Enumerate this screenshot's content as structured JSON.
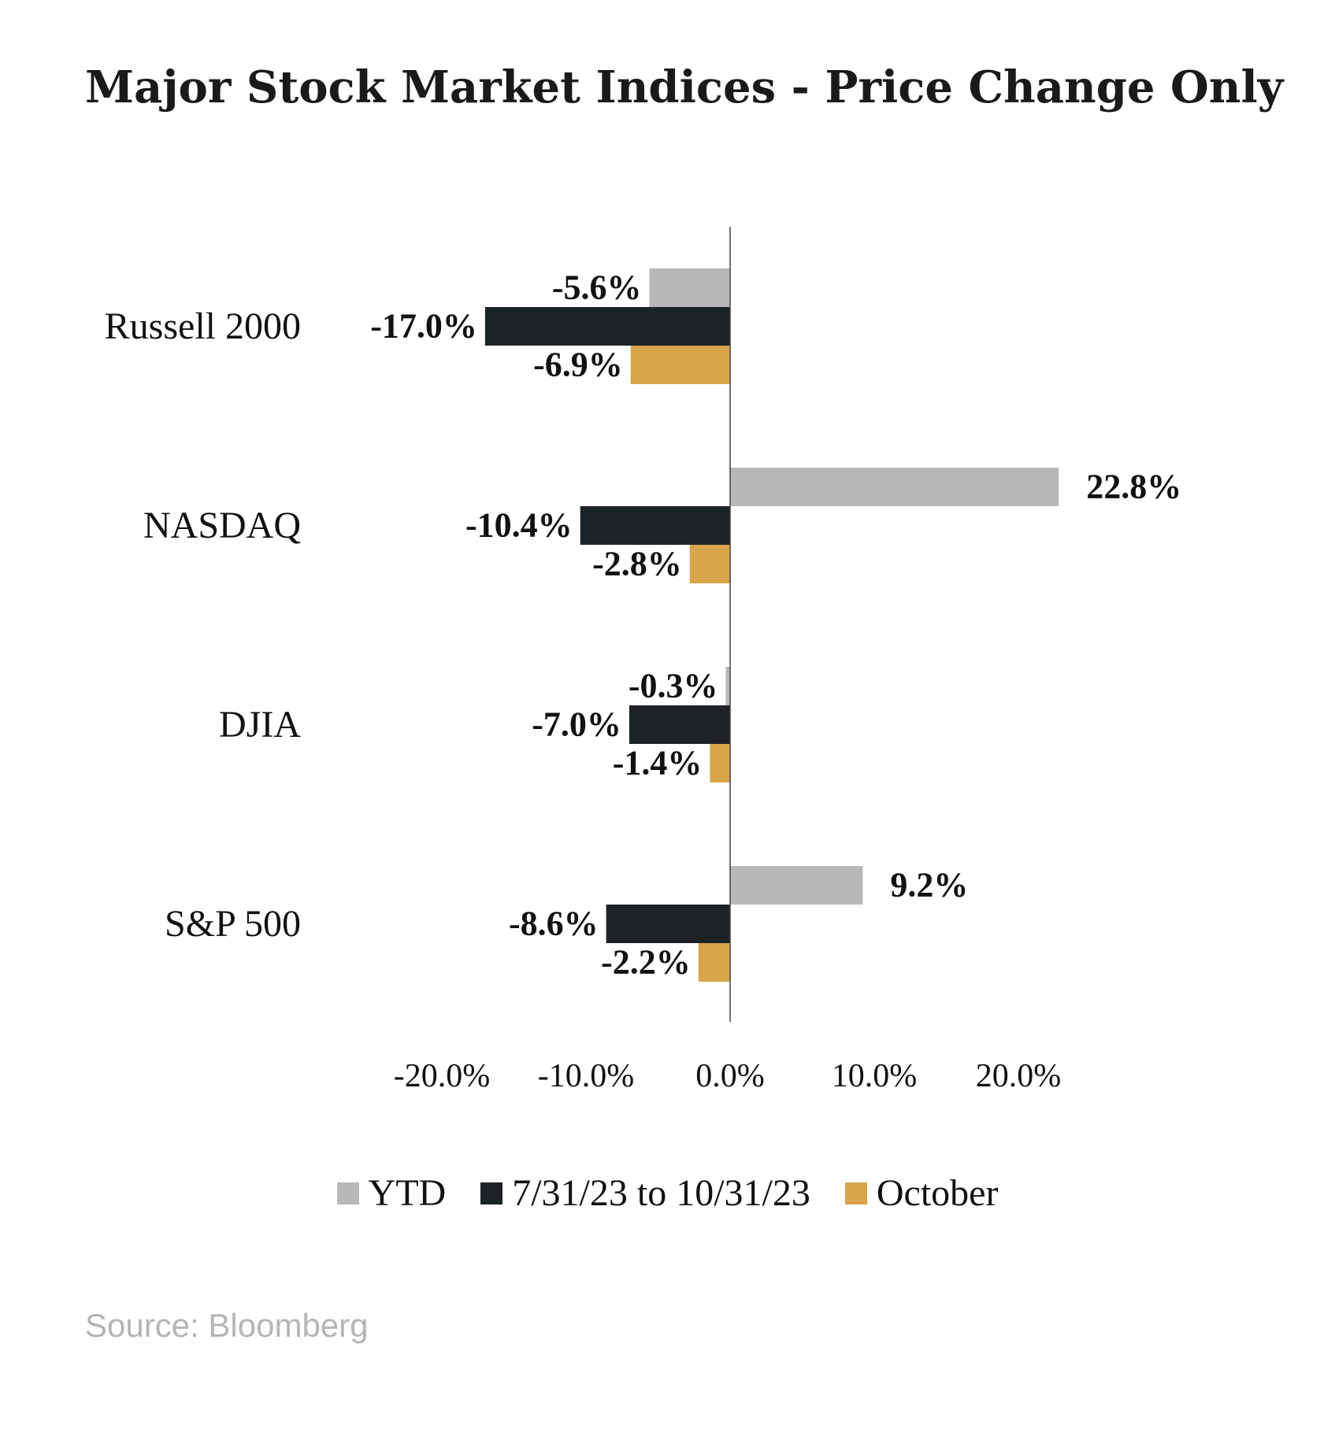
{
  "chart_data": {
    "type": "bar",
    "orientation": "horizontal",
    "title": "Major Stock Market Indices - Price Change Only",
    "categories": [
      "Russell 2000",
      "NASDAQ",
      "DJIA",
      "S&P 500"
    ],
    "series": [
      {
        "name": "YTD",
        "color": "#b8b8b8",
        "values": [
          -5.6,
          22.8,
          -0.3,
          9.2
        ],
        "labels": [
          "-5.6%",
          "22.8%",
          "-0.3%",
          "9.2%"
        ]
      },
      {
        "name": "7/31/23 to 10/31/23",
        "color": "#1c2326",
        "values": [
          -17.0,
          -10.4,
          -7.0,
          -8.6
        ],
        "labels": [
          "-17.0%",
          "-10.4%",
          "-7.0%",
          "-8.6%"
        ]
      },
      {
        "name": "October",
        "color": "#d8a54a",
        "values": [
          -6.9,
          -2.8,
          -1.4,
          -2.2
        ],
        "labels": [
          "-6.9%",
          "-2.8%",
          "-1.4%",
          "-2.2%"
        ]
      }
    ],
    "xlim": [
      -20,
      20
    ],
    "xticks": [
      -20,
      -10,
      0,
      10,
      20
    ],
    "xtick_labels": [
      "-20.0%",
      "-10.0%",
      "0.0%",
      "10.0%",
      "20.0%"
    ],
    "grid": false,
    "legend_position": "bottom"
  },
  "source": "Source: Bloomberg"
}
